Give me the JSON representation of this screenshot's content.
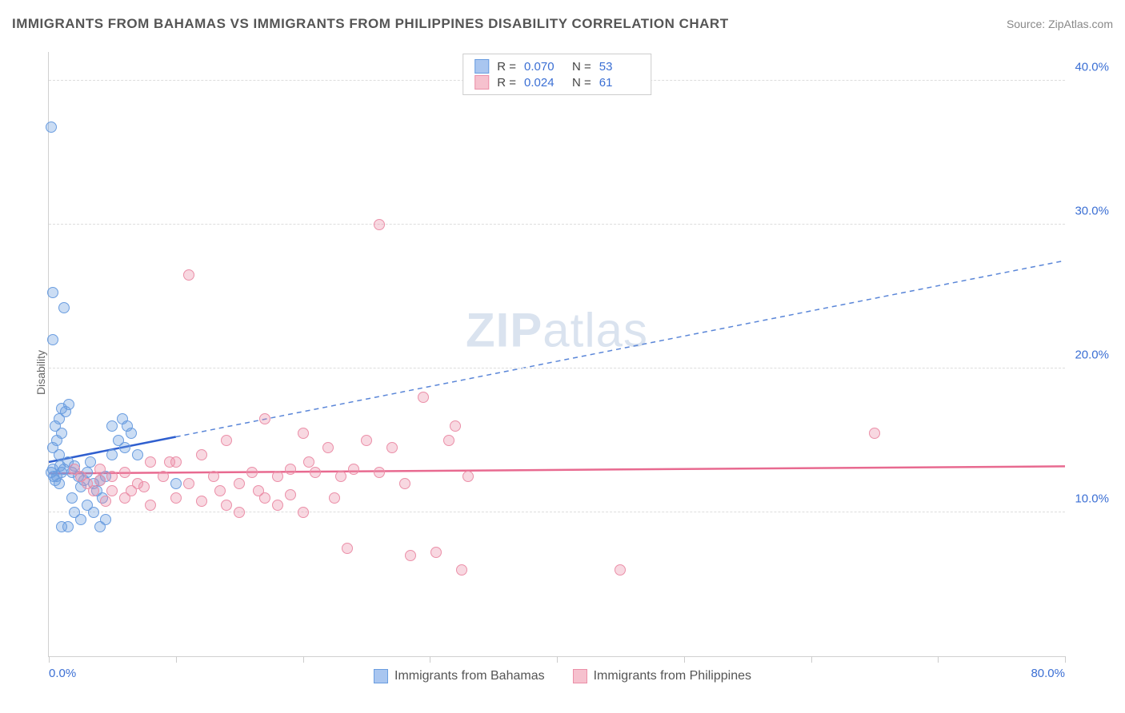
{
  "header": {
    "title": "IMMIGRANTS FROM BAHAMAS VS IMMIGRANTS FROM PHILIPPINES DISABILITY CORRELATION CHART",
    "source": "Source: ZipAtlas.com"
  },
  "y_axis_label": "Disability",
  "watermark": {
    "bold": "ZIP",
    "light": "atlas"
  },
  "chart": {
    "type": "scatter",
    "xlim": [
      0,
      80
    ],
    "ylim": [
      0,
      42
    ],
    "y_ticks": [
      10,
      20,
      30,
      40
    ],
    "y_tick_labels": [
      "10.0%",
      "20.0%",
      "30.0%",
      "40.0%"
    ],
    "x_ticks": [
      0,
      10,
      20,
      30,
      40,
      50,
      60,
      70,
      80
    ],
    "x_min_label": "0.0%",
    "x_max_label": "80.0%",
    "grid_color": "#dddddd",
    "background_color": "#ffffff",
    "marker_radius": 7,
    "marker_opacity": 0.45
  },
  "legend_top": {
    "rows": [
      {
        "swatch_fill": "#a9c6f0",
        "swatch_border": "#6a9de0",
        "r_label": "R =",
        "r_value": "0.070",
        "n_label": "N =",
        "n_value": "53"
      },
      {
        "swatch_fill": "#f6c1ce",
        "swatch_border": "#eb8fa8",
        "r_label": "R =",
        "r_value": "0.024",
        "n_label": "N =",
        "n_value": "61"
      }
    ]
  },
  "legend_bottom": {
    "items": [
      {
        "swatch_fill": "#a9c6f0",
        "swatch_border": "#6a9de0",
        "label": "Immigrants from Bahamas"
      },
      {
        "swatch_fill": "#f6c1ce",
        "swatch_border": "#eb8fa8",
        "label": "Immigrants from Philippines"
      }
    ]
  },
  "series": [
    {
      "name": "Immigrants from Bahamas",
      "fill": "rgba(107,157,224,0.35)",
      "stroke": "#6a9de0",
      "trend_color": "#2f5fcf",
      "trend_dash_color": "#5a86d8",
      "trend_solid_end_x": 10,
      "trend": {
        "x1": 0,
        "y1": 13.5,
        "x2": 80,
        "y2": 27.5
      },
      "points": [
        [
          0.2,
          36.8
        ],
        [
          0.3,
          25.3
        ],
        [
          1.2,
          24.2
        ],
        [
          0.3,
          22.0
        ],
        [
          0.2,
          12.8
        ],
        [
          0.3,
          13.0
        ],
        [
          0.4,
          12.5
        ],
        [
          0.5,
          12.2
        ],
        [
          0.6,
          12.5
        ],
        [
          0.8,
          12.0
        ],
        [
          0.9,
          13.2
        ],
        [
          1.0,
          12.8
        ],
        [
          1.2,
          13.0
        ],
        [
          1.5,
          13.5
        ],
        [
          1.8,
          12.8
        ],
        [
          2.0,
          13.2
        ],
        [
          2.3,
          12.5
        ],
        [
          2.5,
          11.8
        ],
        [
          2.8,
          12.2
        ],
        [
          3.0,
          12.8
        ],
        [
          3.3,
          13.5
        ],
        [
          3.5,
          12.0
        ],
        [
          3.8,
          11.5
        ],
        [
          4.0,
          12.2
        ],
        [
          4.2,
          11.0
        ],
        [
          4.5,
          12.5
        ],
        [
          5.0,
          14.0
        ],
        [
          5.0,
          16.0
        ],
        [
          5.5,
          15.0
        ],
        [
          5.8,
          16.5
        ],
        [
          6.0,
          14.5
        ],
        [
          6.2,
          16.0
        ],
        [
          6.5,
          15.5
        ],
        [
          7.0,
          14.0
        ],
        [
          3.0,
          10.5
        ],
        [
          3.5,
          10.0
        ],
        [
          4.0,
          9.0
        ],
        [
          4.5,
          9.5
        ],
        [
          2.0,
          10.0
        ],
        [
          2.5,
          9.5
        ],
        [
          1.0,
          9.0
        ],
        [
          1.5,
          9.0
        ],
        [
          1.8,
          11.0
        ],
        [
          1.0,
          17.2
        ],
        [
          1.3,
          17.0
        ],
        [
          1.6,
          17.5
        ],
        [
          1.0,
          15.5
        ],
        [
          0.5,
          16.0
        ],
        [
          0.8,
          16.5
        ],
        [
          0.3,
          14.5
        ],
        [
          0.6,
          15.0
        ],
        [
          0.8,
          14.0
        ],
        [
          10.0,
          12.0
        ]
      ]
    },
    {
      "name": "Immigrants from Philippines",
      "fill": "rgba(235,143,168,0.35)",
      "stroke": "#eb8fa8",
      "trend_color": "#e86a90",
      "trend_dash_color": "#e86a90",
      "trend_solid_end_x": 80,
      "trend": {
        "x1": 0,
        "y1": 12.7,
        "x2": 80,
        "y2": 13.2
      },
      "points": [
        [
          26.0,
          30.0
        ],
        [
          11.0,
          26.5
        ],
        [
          29.5,
          18.0
        ],
        [
          32.0,
          16.0
        ],
        [
          31.5,
          15.0
        ],
        [
          20.0,
          15.5
        ],
        [
          25.0,
          15.0
        ],
        [
          22.0,
          14.5
        ],
        [
          27.0,
          14.5
        ],
        [
          17.0,
          16.5
        ],
        [
          14.0,
          15.0
        ],
        [
          12.0,
          14.0
        ],
        [
          10.0,
          13.5
        ],
        [
          8.0,
          13.5
        ],
        [
          6.0,
          12.8
        ],
        [
          5.0,
          12.5
        ],
        [
          4.0,
          12.2
        ],
        [
          3.0,
          12.0
        ],
        [
          7.0,
          12.0
        ],
        [
          9.0,
          12.5
        ],
        [
          11.0,
          12.0
        ],
        [
          13.0,
          12.5
        ],
        [
          15.0,
          12.0
        ],
        [
          16.0,
          12.8
        ],
        [
          18.0,
          12.5
        ],
        [
          19.0,
          13.0
        ],
        [
          21.0,
          12.8
        ],
        [
          23.0,
          12.5
        ],
        [
          24.0,
          13.0
        ],
        [
          26.0,
          12.8
        ],
        [
          28.0,
          12.0
        ],
        [
          17.0,
          11.0
        ],
        [
          14.0,
          10.5
        ],
        [
          12.0,
          10.8
        ],
        [
          10.0,
          11.0
        ],
        [
          8.0,
          10.5
        ],
        [
          6.0,
          11.0
        ],
        [
          5.0,
          11.5
        ],
        [
          4.5,
          10.8
        ],
        [
          15.0,
          10.0
        ],
        [
          18.0,
          10.5
        ],
        [
          20.0,
          10.0
        ],
        [
          19.0,
          11.2
        ],
        [
          16.5,
          11.5
        ],
        [
          23.5,
          7.5
        ],
        [
          28.5,
          7.0
        ],
        [
          30.5,
          7.2
        ],
        [
          32.5,
          6.0
        ],
        [
          45.0,
          6.0
        ],
        [
          65.0,
          15.5
        ],
        [
          2.0,
          13.0
        ],
        [
          2.5,
          12.5
        ],
        [
          3.5,
          11.5
        ],
        [
          4.0,
          13.0
        ],
        [
          6.5,
          11.5
        ],
        [
          7.5,
          11.8
        ],
        [
          9.5,
          13.5
        ],
        [
          13.5,
          11.5
        ],
        [
          22.5,
          11.0
        ],
        [
          20.5,
          13.5
        ],
        [
          33.0,
          12.5
        ]
      ]
    }
  ]
}
